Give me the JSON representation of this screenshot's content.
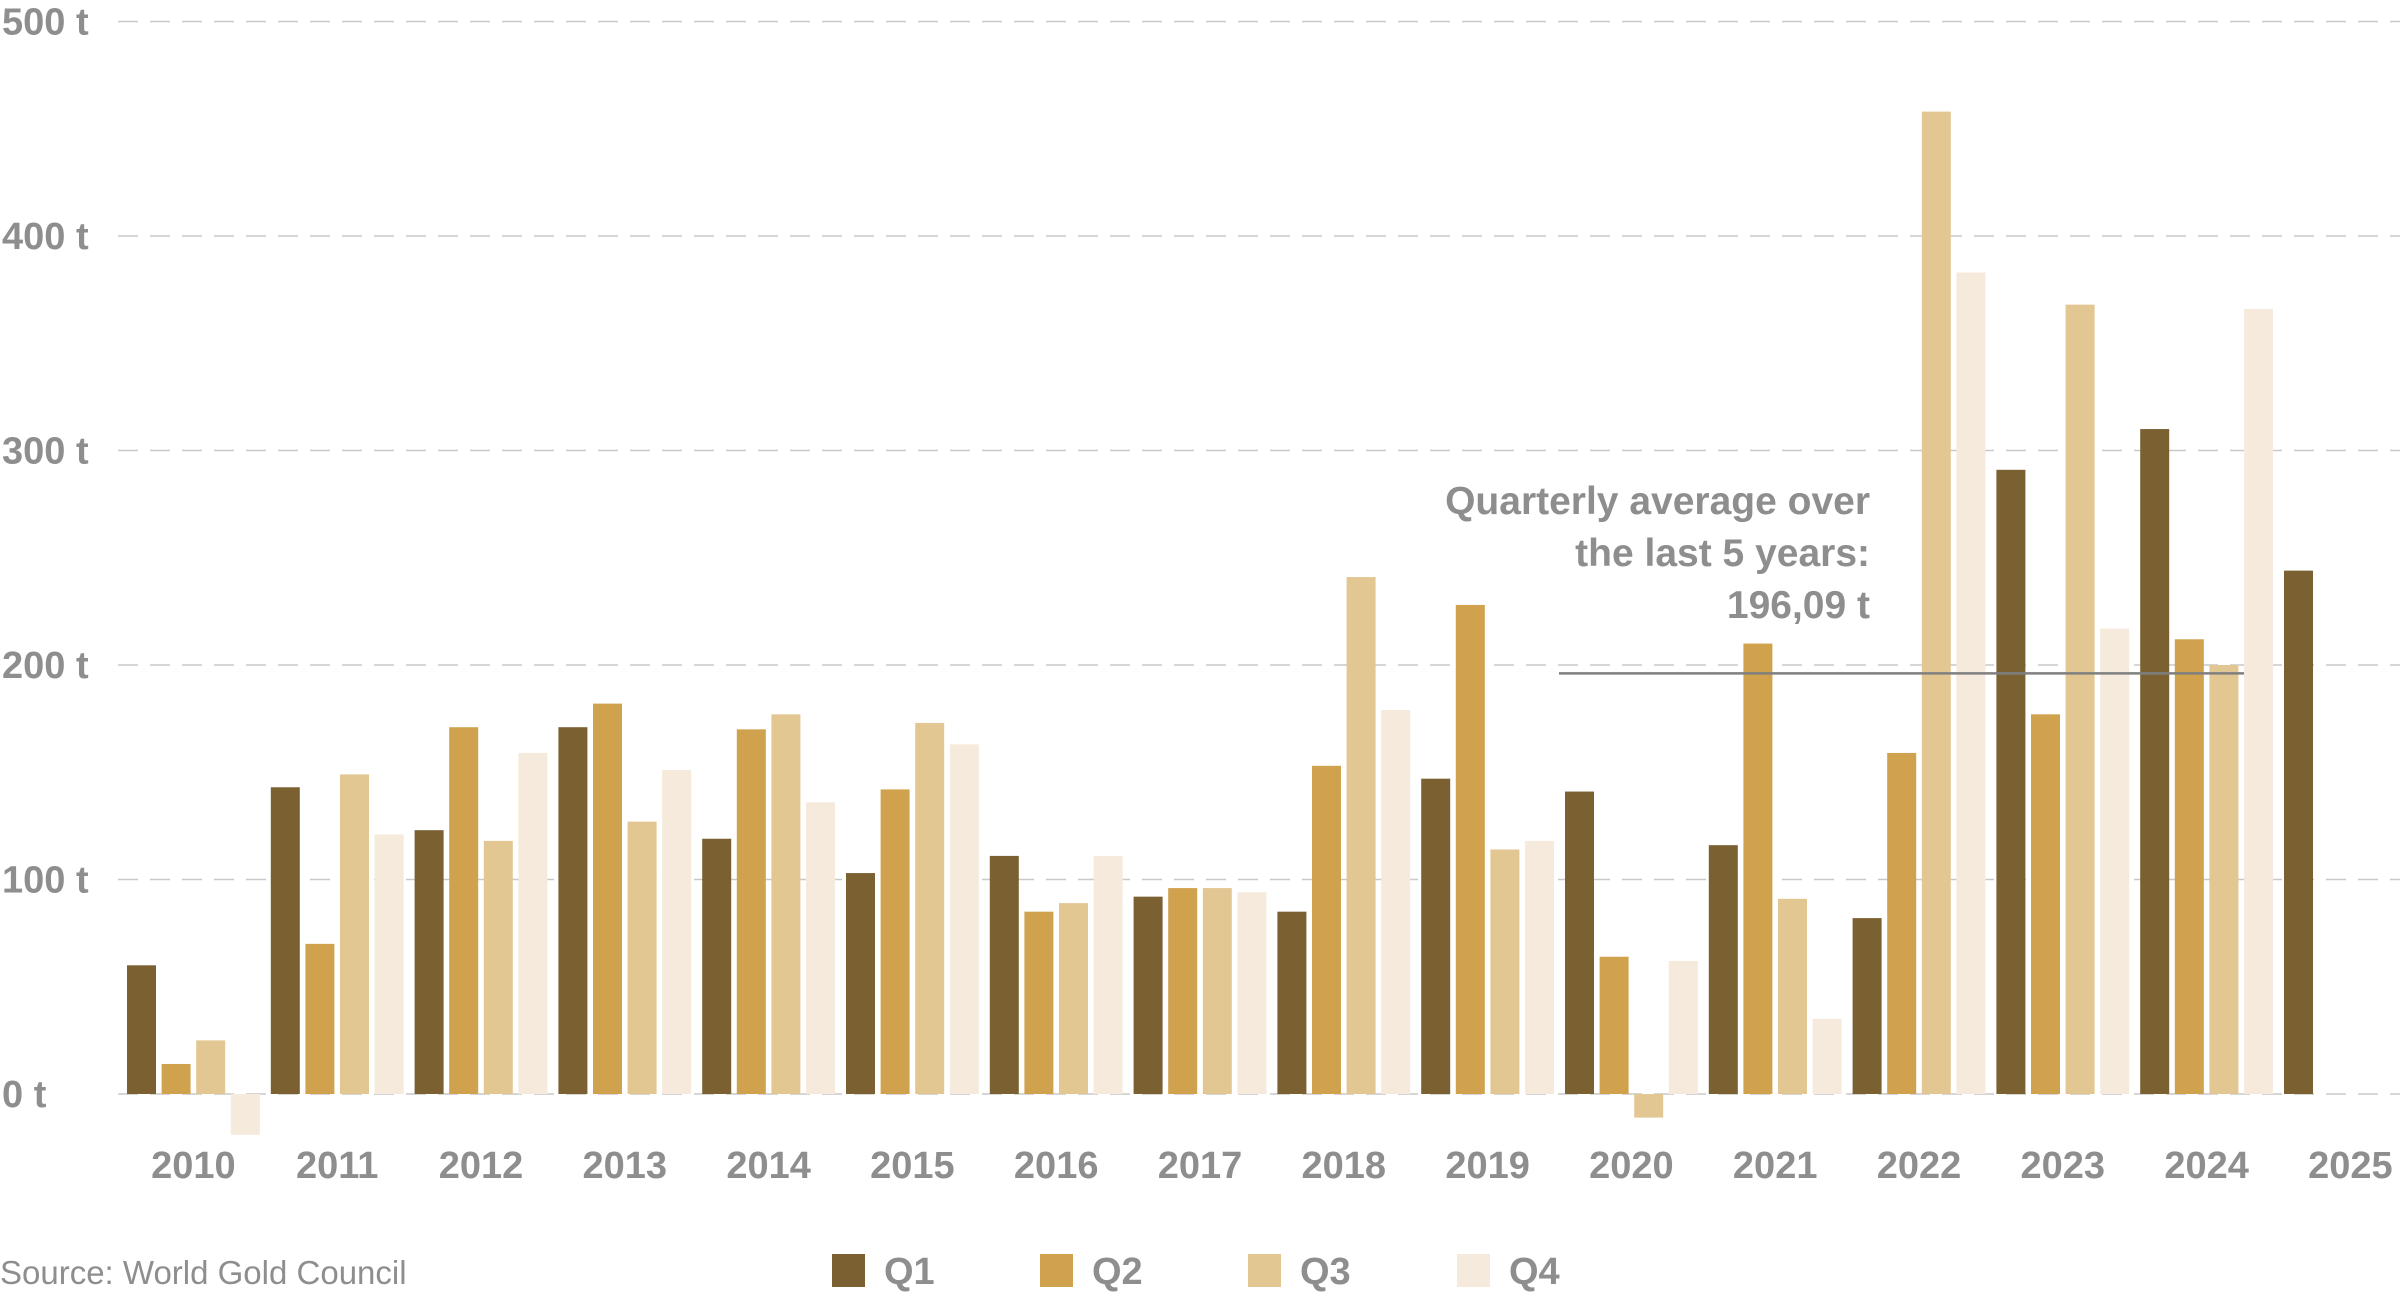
{
  "chart_data": {
    "type": "bar",
    "title": "",
    "xlabel": "",
    "ylabel": "",
    "ylim": [
      -20,
      500
    ],
    "y_ticks": [
      {
        "value": 0,
        "label": "0 t"
      },
      {
        "value": 100,
        "label": "100 t"
      },
      {
        "value": 200,
        "label": "200 t"
      },
      {
        "value": 300,
        "label": "300 t"
      },
      {
        "value": 400,
        "label": "400 t"
      },
      {
        "value": 500,
        "label": "500 t"
      }
    ],
    "grid": "horizontal-dashed",
    "categories": [
      "2010",
      "2011",
      "2012",
      "2013",
      "2014",
      "2015",
      "2016",
      "2017",
      "2018",
      "2019",
      "2020",
      "2021",
      "2022",
      "2023",
      "2024",
      "2025"
    ],
    "series": [
      {
        "name": "Q1",
        "color": "#7b6032",
        "values": [
          60,
          143,
          123,
          171,
          119,
          103,
          111,
          92,
          85,
          147,
          141,
          116,
          82,
          291,
          310,
          244
        ]
      },
      {
        "name": "Q2",
        "color": "#d0a24e",
        "values": [
          14,
          70,
          171,
          182,
          170,
          142,
          85,
          96,
          153,
          228,
          64,
          210,
          159,
          177,
          212,
          null
        ]
      },
      {
        "name": "Q3",
        "color": "#e3c792",
        "values": [
          25,
          149,
          118,
          127,
          177,
          173,
          89,
          96,
          241,
          114,
          -11,
          91,
          458,
          368,
          200,
          null
        ]
      },
      {
        "name": "Q4",
        "color": "#f5eadb",
        "values": [
          -19,
          121,
          159,
          151,
          136,
          163,
          111,
          94,
          179,
          118,
          62,
          35,
          383,
          217,
          366,
          null
        ]
      }
    ],
    "reference_line": {
      "value": 196.09,
      "from_category": "2020",
      "to_category": "2025"
    },
    "annotation_lines": [
      "Quarterly average over",
      "the last 5 years:",
      "196,09 t"
    ],
    "legend": {
      "position": "bottom-center",
      "entries": [
        "Q1",
        "Q2",
        "Q3",
        "Q4"
      ]
    }
  },
  "source": "Source: World Gold Council"
}
